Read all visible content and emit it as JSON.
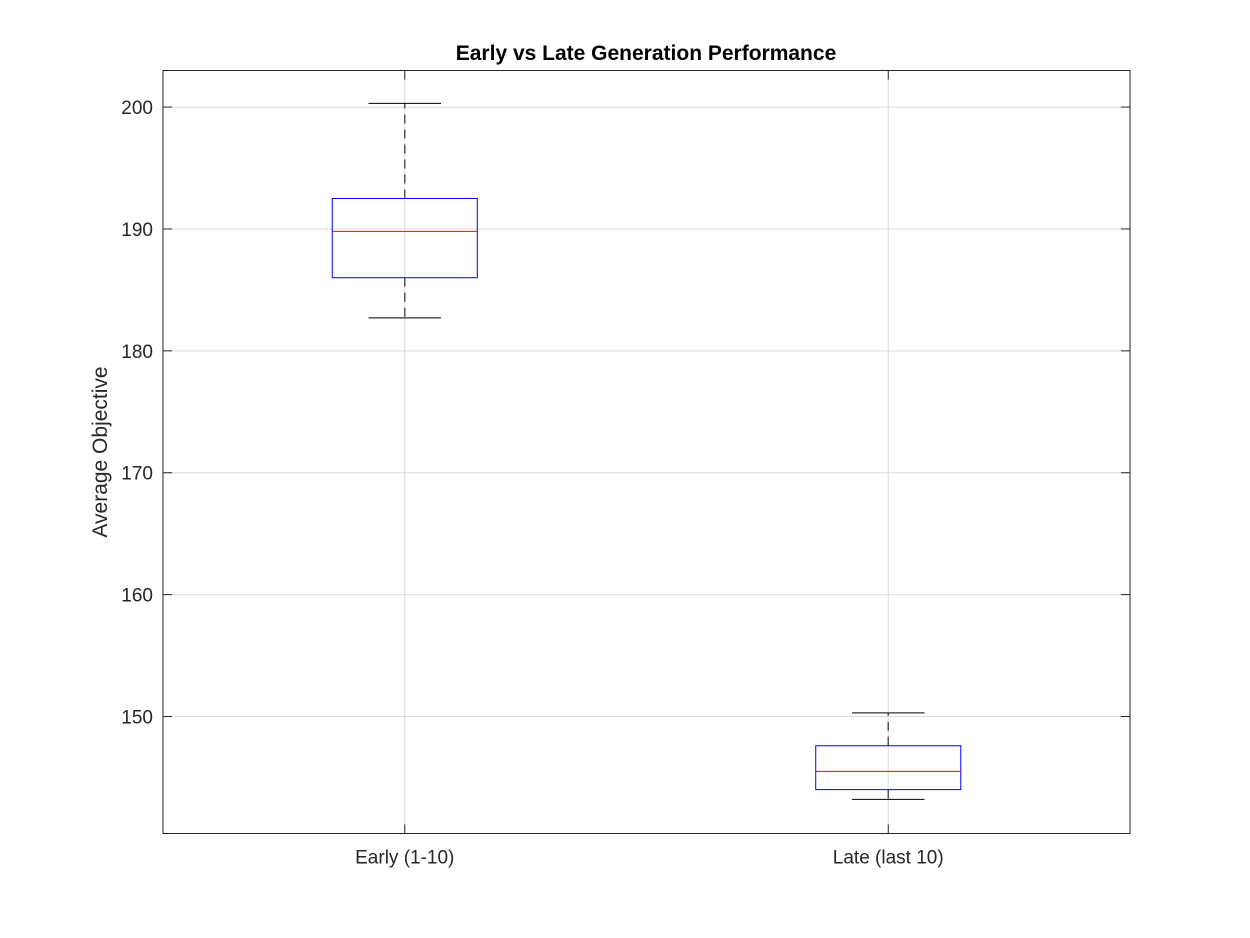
{
  "chart_data": {
    "type": "box",
    "title": "Early vs Late Generation Performance",
    "xlabel": "",
    "ylabel": "Average Objective",
    "ylim": [
      140.4,
      203.0
    ],
    "yticks": [
      150,
      160,
      170,
      180,
      190,
      200
    ],
    "grid": true,
    "categories": [
      "Early (1-10)",
      "Late (last 10)"
    ],
    "boxes": [
      {
        "category": "Early (1-10)",
        "whisker_low": 182.7,
        "q1": 186.0,
        "median": 189.8,
        "q3": 192.5,
        "whisker_high": 200.3
      },
      {
        "category": "Late (last 10)",
        "whisker_low": 143.2,
        "q1": 144.0,
        "median": 145.5,
        "q3": 147.6,
        "whisker_high": 150.3
      }
    ],
    "colors": {
      "box": "#0000ff",
      "median": "#ff0000",
      "whisker": "#000000",
      "grid": "#dcdcdc",
      "axis": "#262626"
    }
  }
}
